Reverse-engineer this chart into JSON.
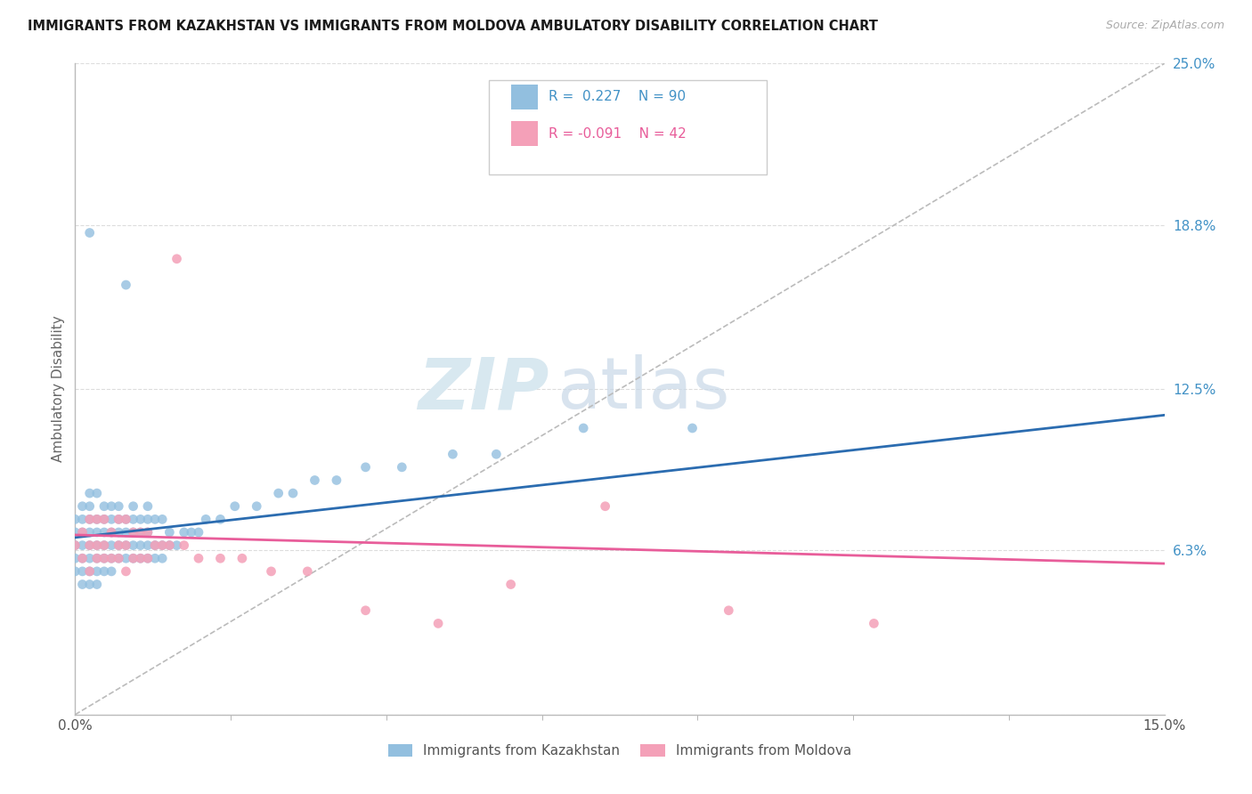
{
  "title": "IMMIGRANTS FROM KAZAKHSTAN VS IMMIGRANTS FROM MOLDOVA AMBULATORY DISABILITY CORRELATION CHART",
  "source": "Source: ZipAtlas.com",
  "ylabel": "Ambulatory Disability",
  "xlim": [
    0.0,
    0.15
  ],
  "ylim": [
    0.0,
    0.25
  ],
  "ytick_labels_right": [
    "25.0%",
    "18.8%",
    "12.5%",
    "6.3%",
    ""
  ],
  "ytick_positions_right": [
    0.25,
    0.188,
    0.125,
    0.063,
    0.0
  ],
  "kaz_R": 0.227,
  "kaz_N": 90,
  "mol_R": -0.091,
  "mol_N": 42,
  "kaz_color": "#92bfdf",
  "mol_color": "#f4a0b8",
  "kaz_line_color": "#2b6cb0",
  "mol_line_color": "#e85d9a",
  "ref_line_color": "#bbbbbb",
  "background_color": "#ffffff",
  "grid_color": "#dddddd",
  "kaz_x": [
    0.0,
    0.0,
    0.0,
    0.0,
    0.0,
    0.001,
    0.001,
    0.001,
    0.001,
    0.001,
    0.001,
    0.001,
    0.002,
    0.002,
    0.002,
    0.002,
    0.002,
    0.002,
    0.002,
    0.002,
    0.002,
    0.003,
    0.003,
    0.003,
    0.003,
    0.003,
    0.003,
    0.003,
    0.004,
    0.004,
    0.004,
    0.004,
    0.004,
    0.004,
    0.005,
    0.005,
    0.005,
    0.005,
    0.005,
    0.005,
    0.006,
    0.006,
    0.006,
    0.006,
    0.006,
    0.007,
    0.007,
    0.007,
    0.007,
    0.007,
    0.008,
    0.008,
    0.008,
    0.008,
    0.008,
    0.009,
    0.009,
    0.009,
    0.009,
    0.01,
    0.01,
    0.01,
    0.01,
    0.01,
    0.011,
    0.011,
    0.011,
    0.012,
    0.012,
    0.012,
    0.013,
    0.013,
    0.014,
    0.015,
    0.016,
    0.017,
    0.018,
    0.02,
    0.022,
    0.025,
    0.028,
    0.03,
    0.033,
    0.036,
    0.04,
    0.045,
    0.052,
    0.058,
    0.07,
    0.085
  ],
  "kaz_y": [
    0.055,
    0.06,
    0.065,
    0.07,
    0.075,
    0.05,
    0.055,
    0.06,
    0.065,
    0.07,
    0.075,
    0.08,
    0.05,
    0.055,
    0.06,
    0.065,
    0.07,
    0.075,
    0.08,
    0.085,
    0.185,
    0.05,
    0.055,
    0.06,
    0.065,
    0.07,
    0.075,
    0.085,
    0.055,
    0.06,
    0.065,
    0.07,
    0.075,
    0.08,
    0.055,
    0.06,
    0.065,
    0.07,
    0.075,
    0.08,
    0.06,
    0.065,
    0.07,
    0.075,
    0.08,
    0.06,
    0.065,
    0.07,
    0.075,
    0.165,
    0.06,
    0.065,
    0.07,
    0.075,
    0.08,
    0.06,
    0.065,
    0.07,
    0.075,
    0.06,
    0.065,
    0.07,
    0.075,
    0.08,
    0.06,
    0.065,
    0.075,
    0.06,
    0.065,
    0.075,
    0.065,
    0.07,
    0.065,
    0.07,
    0.07,
    0.07,
    0.075,
    0.075,
    0.08,
    0.08,
    0.085,
    0.085,
    0.09,
    0.09,
    0.095,
    0.095,
    0.1,
    0.1,
    0.11,
    0.11
  ],
  "mol_x": [
    0.0,
    0.001,
    0.001,
    0.002,
    0.002,
    0.002,
    0.003,
    0.003,
    0.003,
    0.004,
    0.004,
    0.004,
    0.005,
    0.005,
    0.006,
    0.006,
    0.006,
    0.007,
    0.007,
    0.007,
    0.008,
    0.008,
    0.009,
    0.009,
    0.01,
    0.01,
    0.011,
    0.012,
    0.013,
    0.014,
    0.015,
    0.017,
    0.02,
    0.023,
    0.027,
    0.032,
    0.04,
    0.05,
    0.06,
    0.073,
    0.09,
    0.11
  ],
  "mol_y": [
    0.065,
    0.06,
    0.07,
    0.055,
    0.065,
    0.075,
    0.06,
    0.065,
    0.075,
    0.06,
    0.065,
    0.075,
    0.06,
    0.07,
    0.06,
    0.065,
    0.075,
    0.055,
    0.065,
    0.075,
    0.06,
    0.07,
    0.06,
    0.07,
    0.06,
    0.07,
    0.065,
    0.065,
    0.065,
    0.175,
    0.065,
    0.06,
    0.06,
    0.06,
    0.055,
    0.055,
    0.04,
    0.035,
    0.05,
    0.08,
    0.04,
    0.035
  ]
}
